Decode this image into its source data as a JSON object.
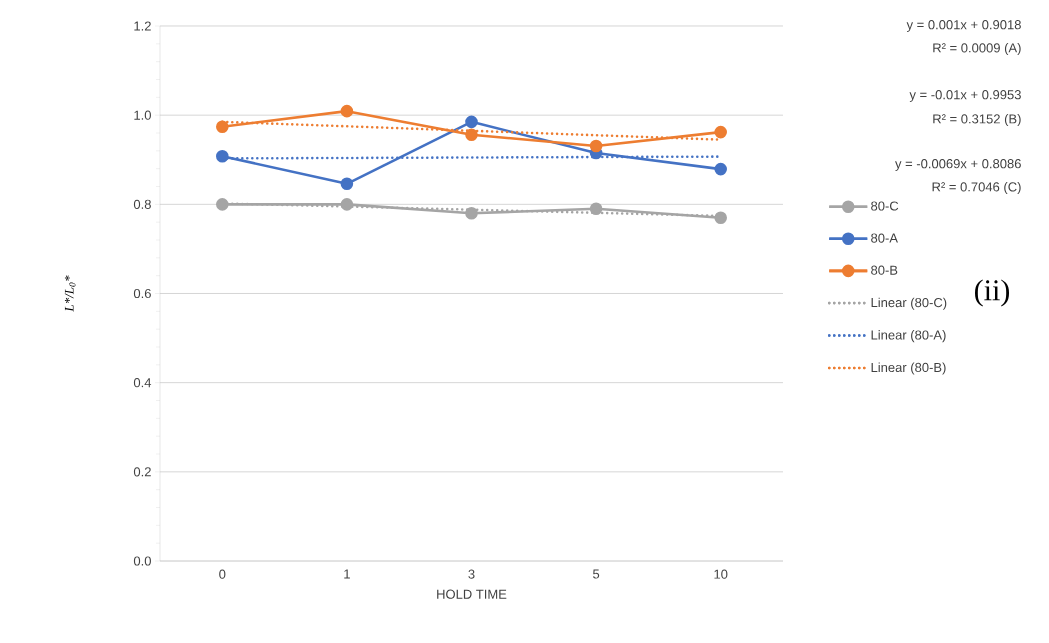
{
  "chart_data": {
    "type": "line",
    "xlabel": "HOLD TIME",
    "ylabel": "L*/L$_{0}$*",
    "categories": [
      "0",
      "1",
      "3",
      "5",
      "10"
    ],
    "ylim": [
      0,
      1.2
    ],
    "yticks": [
      {
        "value": 0,
        "label": "0.0"
      },
      {
        "value": 0.2,
        "label": "0.2"
      },
      {
        "value": 0.4,
        "label": "0.4"
      },
      {
        "value": 0.6,
        "label": "0.6"
      },
      {
        "value": 0.8,
        "label": "0.8"
      },
      {
        "value": 1,
        "label": "1.0"
      },
      {
        "value": 1.2,
        "label": "1.2"
      }
    ],
    "grid": "y",
    "legend": "right",
    "marker": "circle",
    "line_style": "solid",
    "series": [
      {
        "name": "80-C",
        "color": "#a5a5a5",
        "values": [
          0.8,
          0.8,
          0.78,
          0.79,
          0.77
        ]
      },
      {
        "name": "80-A",
        "color": "#4472c4",
        "values": [
          0.908,
          0.846,
          0.985,
          0.915,
          0.879
        ]
      },
      {
        "name": "80-B",
        "color": "#ed7d31",
        "values": [
          0.974,
          1.009,
          0.956,
          0.931,
          0.962
        ]
      },
      {
        "name": "Linear (80-C)",
        "color": "#a5a5a5",
        "marker": "none",
        "line_style": "dotted",
        "values": [
          0.802,
          0.795,
          0.788,
          0.781,
          0.774
        ]
      },
      {
        "name": "Linear (80-A)",
        "color": "#4472c4",
        "marker": "none",
        "line_style": "dotted",
        "values": [
          0.903,
          0.904,
          0.905,
          0.906,
          0.907
        ]
      },
      {
        "name": "Linear (80-B)",
        "color": "#ed7d31",
        "marker": "none",
        "line_style": "dotted",
        "values": [
          0.985,
          0.975,
          0.965,
          0.955,
          0.945
        ]
      }
    ],
    "annotations": [
      "y = 0.001x + 0.9018",
      "R² = 0.0009 (A)",
      "y = -0.01x + 0.9953",
      "R² = 0.3152 (B)",
      "y = -0.0069x + 0.8086",
      "R² = 0.7046 (C)",
      "(ii)"
    ]
  }
}
